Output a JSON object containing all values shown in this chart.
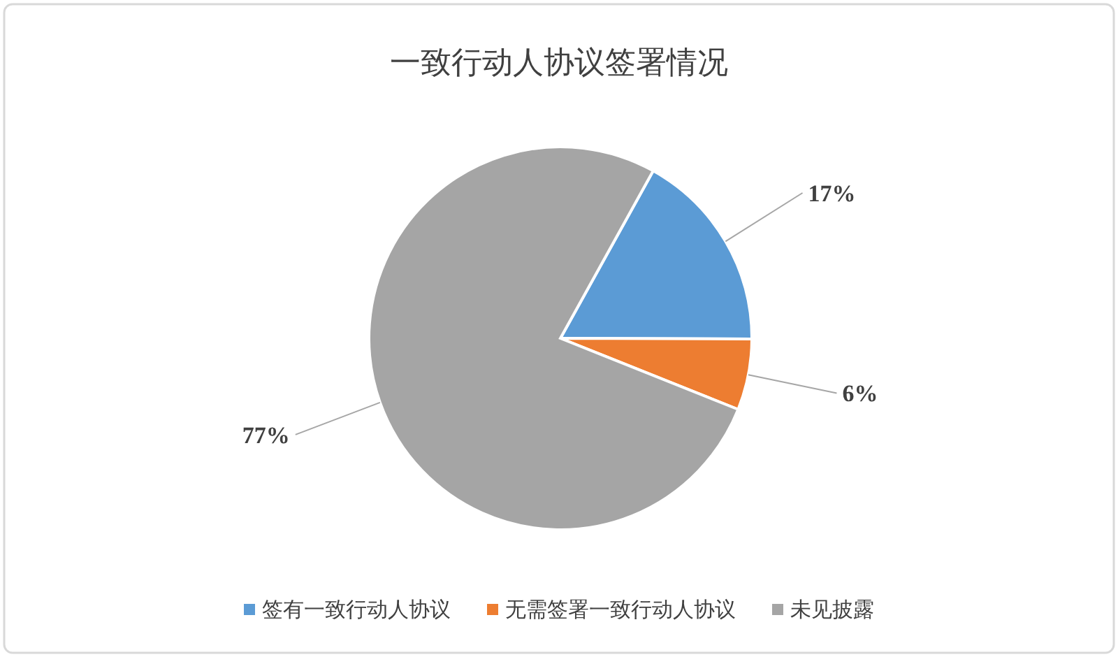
{
  "chart_data": {
    "type": "pie",
    "title": "一致行动人协议签署情况",
    "categories": [
      "签有一致行动人协议",
      "无需签署一致行动人协议",
      "未见披露"
    ],
    "values": [
      17,
      6,
      77
    ],
    "colors": [
      "#5b9bd5",
      "#ed7d31",
      "#a5a5a5"
    ],
    "value_labels": [
      "17%",
      "6%",
      "77%"
    ],
    "legend": "bottom"
  }
}
